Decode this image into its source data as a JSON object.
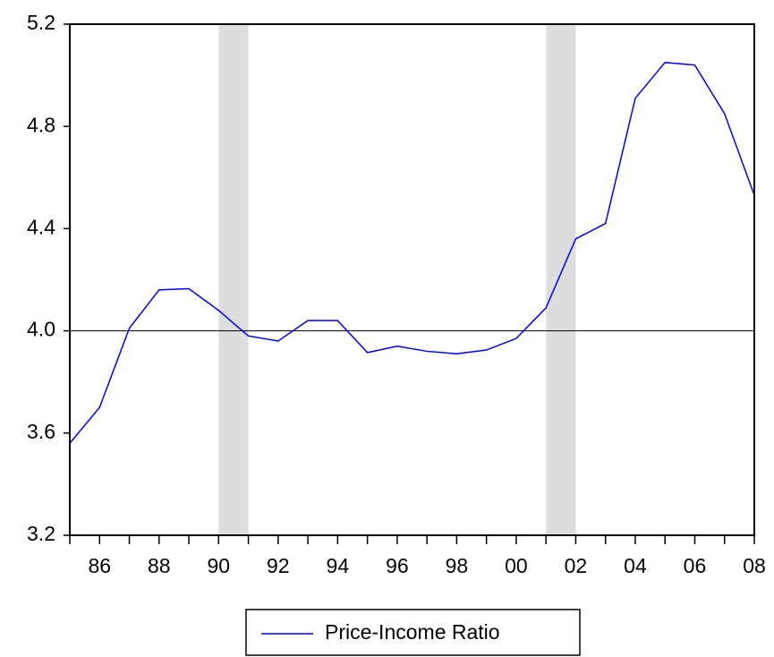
{
  "chart_data": {
    "type": "line",
    "x": [
      1985,
      1986,
      1987,
      1988,
      1989,
      1990,
      1991,
      1992,
      1993,
      1994,
      1995,
      1996,
      1997,
      1998,
      1999,
      2000,
      2001,
      2002,
      2003,
      2004,
      2005,
      2006,
      2007,
      2008
    ],
    "series": [
      {
        "name": "Price-Income Ratio",
        "color": "#0000ff",
        "values": [
          3.56,
          3.7,
          4.01,
          4.16,
          4.165,
          4.08,
          3.98,
          3.96,
          4.04,
          4.04,
          3.915,
          3.94,
          3.92,
          3.91,
          3.925,
          3.97,
          4.09,
          4.36,
          4.42,
          4.91,
          5.05,
          5.04,
          4.85,
          4.53
        ]
      }
    ],
    "xlim": [
      1985,
      2008
    ],
    "xticks": [
      {
        "value": 1986,
        "label": "86"
      },
      {
        "value": 1988,
        "label": "88"
      },
      {
        "value": 1990,
        "label": "90"
      },
      {
        "value": 1992,
        "label": "92"
      },
      {
        "value": 1994,
        "label": "94"
      },
      {
        "value": 1996,
        "label": "96"
      },
      {
        "value": 1998,
        "label": "98"
      },
      {
        "value": 2000,
        "label": "00"
      },
      {
        "value": 2002,
        "label": "02"
      },
      {
        "value": 2004,
        "label": "04"
      },
      {
        "value": 2006,
        "label": "06"
      },
      {
        "value": 2008,
        "label": "08"
      }
    ],
    "xminor_ticks": [
      1985,
      1987,
      1989,
      1991,
      1993,
      1995,
      1997,
      1999,
      2001,
      2003,
      2005,
      2007
    ],
    "ylim": [
      3.2,
      5.2
    ],
    "yticks": [
      3.2,
      3.6,
      {
        "value": 4.0,
        "label": "4.0"
      },
      4.4,
      4.8,
      5.2
    ],
    "shaded_ranges": [
      [
        1990,
        1991
      ],
      [
        2001,
        2002
      ]
    ],
    "shade_color": "#dddddd",
    "reference_line": {
      "value": 4.0,
      "label": "4.0"
    }
  }
}
